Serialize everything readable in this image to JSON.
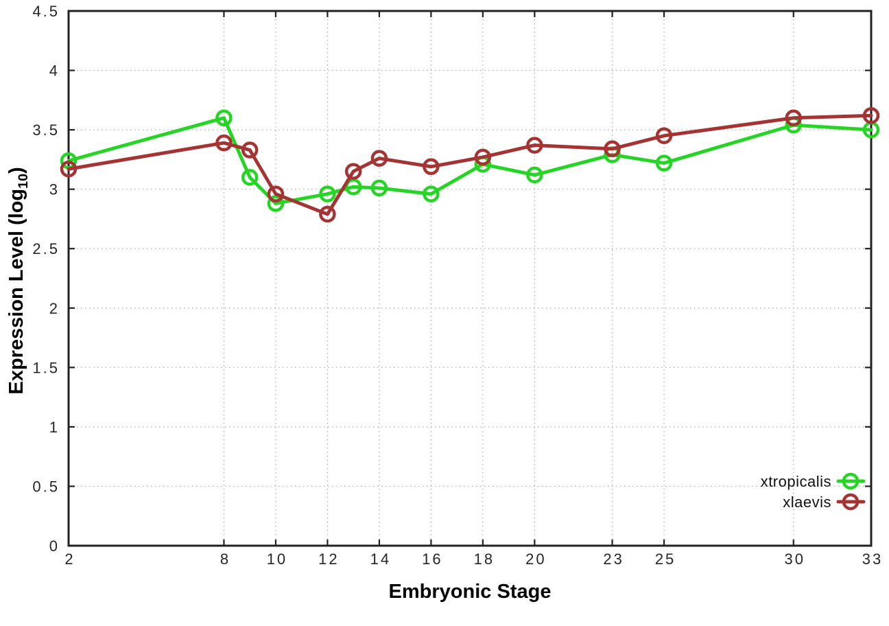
{
  "chart_data": {
    "type": "line",
    "title": "",
    "xlabel": "Embryonic Stage",
    "ylabel": "Expression Level (log10)",
    "ylabel_main": "Expression Level (log",
    "ylabel_sub": "10",
    "ylabel_close": ")",
    "xlim": [
      2,
      33
    ],
    "ylim": [
      0,
      4.5
    ],
    "grid": "dotted",
    "legend_position": "bottom-right",
    "x": [
      2,
      8,
      9,
      10,
      12,
      13,
      14,
      16,
      18,
      20,
      23,
      25,
      30,
      33
    ],
    "x_ticks": [
      {
        "value": 2,
        "label": "2"
      },
      {
        "value": 8,
        "label": "8"
      },
      {
        "value": 10,
        "label": "10"
      },
      {
        "value": 12,
        "label": "12"
      },
      {
        "value": 14,
        "label": "14"
      },
      {
        "value": 16,
        "label": "16"
      },
      {
        "value": 18,
        "label": "18"
      },
      {
        "value": 20,
        "label": "20"
      },
      {
        "value": 23,
        "label": "23"
      },
      {
        "value": 25,
        "label": "25"
      },
      {
        "value": 30,
        "label": "30"
      },
      {
        "value": 33,
        "label": "33"
      }
    ],
    "y_ticks": [
      {
        "value": 0,
        "label": "0"
      },
      {
        "value": 0.5,
        "label": "0.5"
      },
      {
        "value": 1,
        "label": "1"
      },
      {
        "value": 1.5,
        "label": "1.5"
      },
      {
        "value": 2,
        "label": "2"
      },
      {
        "value": 2.5,
        "label": "2.5"
      },
      {
        "value": 3,
        "label": "3"
      },
      {
        "value": 3.5,
        "label": "3.5"
      },
      {
        "value": 4,
        "label": "4"
      },
      {
        "value": 4.5,
        "label": "4.5"
      }
    ],
    "series": [
      {
        "name": "xtropicalis",
        "color": "#26d426",
        "marker": "open-circle",
        "values": [
          3.24,
          3.6,
          3.1,
          2.88,
          2.96,
          3.02,
          3.01,
          2.96,
          3.21,
          3.12,
          3.29,
          3.22,
          3.54,
          3.5
        ]
      },
      {
        "name": "xlaevis",
        "color": "#a43333",
        "marker": "open-circle",
        "values": [
          3.17,
          3.39,
          3.33,
          2.96,
          2.79,
          3.15,
          3.26,
          3.19,
          3.27,
          3.37,
          3.34,
          3.45,
          3.6,
          3.62
        ]
      }
    ]
  }
}
